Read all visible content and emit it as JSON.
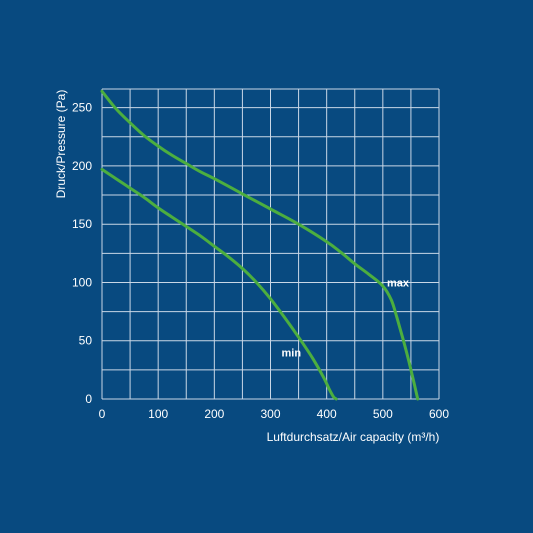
{
  "chart_data": {
    "type": "line",
    "title": "",
    "xlabel": "Luftdurchsatz/Air capacity (m³/h)",
    "ylabel": "Druck/Pressure (Pa)",
    "xlim": [
      0,
      600
    ],
    "ylim": [
      0,
      266
    ],
    "x_ticks": [
      0,
      100,
      200,
      300,
      400,
      500,
      600
    ],
    "y_ticks": [
      0,
      50,
      100,
      150,
      200,
      250
    ],
    "grid": true,
    "grid_x_step": 50,
    "grid_y_step": 25,
    "colors": {
      "background": "#084a80",
      "grid": "#c9d7e6",
      "series": "#4cae3f",
      "text": "#ffffff"
    },
    "series": [
      {
        "name": "max",
        "x": [
          0,
          25,
          50,
          75,
          100,
          125,
          150,
          175,
          200,
          250,
          300,
          350,
          400,
          425,
          450,
          475,
          500,
          515,
          525,
          535,
          545,
          555,
          562
        ],
        "y": [
          264,
          249,
          237,
          226,
          217,
          209,
          202,
          195,
          189,
          176,
          163,
          150,
          135,
          126,
          116,
          107,
          97,
          85,
          70,
          53,
          35,
          15,
          0
        ]
      },
      {
        "name": "min",
        "x": [
          0,
          25,
          50,
          75,
          100,
          125,
          150,
          175,
          200,
          225,
          250,
          275,
          300,
          325,
          350,
          375,
          395,
          405,
          412,
          417
        ],
        "y": [
          197,
          189,
          181,
          173,
          164,
          156,
          148,
          140,
          131,
          122,
          112,
          100,
          86,
          70,
          53,
          35,
          18,
          8,
          2,
          0
        ]
      }
    ],
    "annotations": [
      {
        "text": "max",
        "x": 527,
        "y": 100
      },
      {
        "text": "min",
        "x": 337,
        "y": 40
      }
    ]
  }
}
